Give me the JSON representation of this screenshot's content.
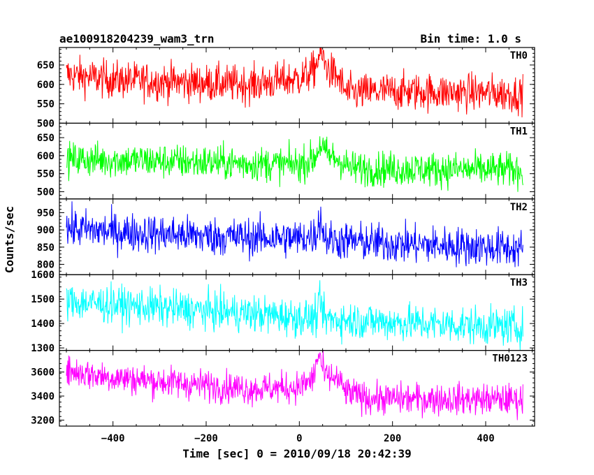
{
  "title_left": "ae100918204239_wam3_trn",
  "title_right": "Bin time: 1.0 s",
  "ylabel": "Counts/sec",
  "xlabel": "Time [sec] 0 = 2010/09/18 20:42:39",
  "chart_data": {
    "type": "line",
    "title": "ae100918204239_wam3_trn",
    "subtitle": "Bin time: 1.0 s",
    "xlabel": "Time [sec] 0 = 2010/09/18 20:42:39",
    "ylabel": "Counts/sec",
    "xlim": [
      -515,
      505
    ],
    "x_range_data": [
      -500,
      480
    ],
    "x_ticks": [
      -400,
      -200,
      0,
      200,
      400
    ],
    "bin_time_s": 1.0,
    "grid": false,
    "panels": [
      {
        "name": "TH0",
        "color": "#ff0000",
        "ylim": [
          500,
          695
        ],
        "yticks": [
          500,
          550,
          600,
          650
        ],
        "baseline": [
          [
            -500,
            625
          ],
          [
            -400,
            612
          ],
          [
            -200,
            603
          ],
          [
            -100,
            600
          ],
          [
            0,
            615
          ],
          [
            30,
            632
          ],
          [
            60,
            640
          ],
          [
            85,
            615
          ],
          [
            100,
            578
          ],
          [
            200,
            582
          ],
          [
            300,
            580
          ],
          [
            400,
            578
          ],
          [
            480,
            575
          ]
        ],
        "noise": 24,
        "flare": {
          "x": 45,
          "height": 40,
          "width": 10
        }
      },
      {
        "name": "TH1",
        "color": "#00ff00",
        "ylim": [
          480,
          690
        ],
        "yticks": [
          500,
          550,
          600,
          650
        ],
        "baseline": [
          [
            -500,
            590
          ],
          [
            -300,
            585
          ],
          [
            -100,
            578
          ],
          [
            0,
            575
          ],
          [
            30,
            590
          ],
          [
            60,
            602
          ],
          [
            90,
            585
          ],
          [
            110,
            565
          ],
          [
            300,
            562
          ],
          [
            480,
            560
          ]
        ],
        "noise": 24,
        "flare": {
          "x": 45,
          "height": 35,
          "width": 8
        }
      },
      {
        "name": "TH2",
        "color": "#0000ff",
        "ylim": [
          770,
          990
        ],
        "yticks": [
          800,
          850,
          900,
          950
        ],
        "baseline": [
          [
            -500,
            905
          ],
          [
            -400,
            895
          ],
          [
            -200,
            882
          ],
          [
            0,
            875
          ],
          [
            40,
            885
          ],
          [
            70,
            870
          ],
          [
            200,
            860
          ],
          [
            400,
            850
          ],
          [
            480,
            845
          ]
        ],
        "noise": 28,
        "flare": {
          "x": 45,
          "height": 50,
          "width": 6
        }
      },
      {
        "name": "TH3",
        "color": "#00ffff",
        "ylim": [
          1290,
          1600
        ],
        "yticks": [
          1300,
          1400,
          1500,
          1600
        ],
        "baseline": [
          [
            -500,
            1490
          ],
          [
            -300,
            1465
          ],
          [
            -100,
            1440
          ],
          [
            0,
            1425
          ],
          [
            100,
            1415
          ],
          [
            200,
            1405
          ],
          [
            400,
            1390
          ],
          [
            480,
            1385
          ]
        ],
        "noise": 38,
        "flare": {
          "x": 45,
          "height": 60,
          "width": 6
        }
      },
      {
        "name": "TH0123",
        "color": "#ff00ff",
        "ylim": [
          3150,
          3780
        ],
        "yticks": [
          3200,
          3400,
          3600
        ],
        "baseline": [
          [
            -500,
            3610
          ],
          [
            -400,
            3555
          ],
          [
            -200,
            3490
          ],
          [
            -100,
            3460
          ],
          [
            0,
            3475
          ],
          [
            40,
            3560
          ],
          [
            80,
            3550
          ],
          [
            100,
            3430
          ],
          [
            150,
            3380
          ],
          [
            300,
            3375
          ],
          [
            480,
            3370
          ]
        ],
        "noise": 65,
        "flare": {
          "x": 42,
          "height": 180,
          "width": 8
        }
      }
    ]
  }
}
